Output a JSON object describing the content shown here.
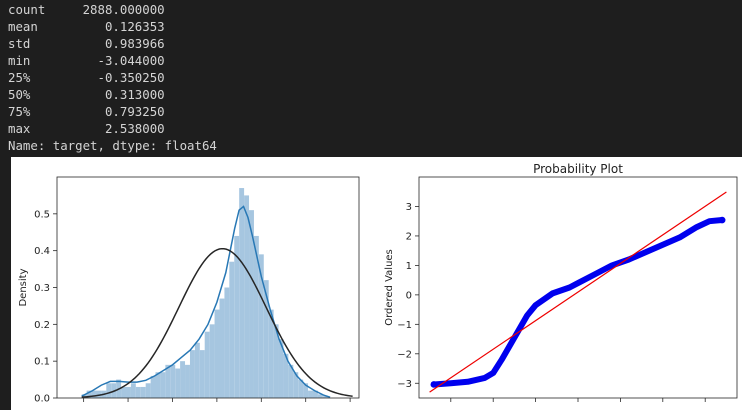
{
  "describe": {
    "rows": [
      {
        "key": "count",
        "value": "2888.000000"
      },
      {
        "key": "mean",
        "value": "0.126353"
      },
      {
        "key": "std",
        "value": "0.983966"
      },
      {
        "key": "min",
        "value": "-3.044000"
      },
      {
        "key": "25%",
        "value": "-0.350250"
      },
      {
        "key": "50%",
        "value": "0.313000"
      },
      {
        "key": "75%",
        "value": "0.793250"
      },
      {
        "key": "max",
        "value": "2.538000"
      }
    ],
    "footer": "Name: target, dtype: float64"
  },
  "colors": {
    "background": "#1e1e1e",
    "text": "#d4d4d4",
    "hist_fill": "#a6c6e0",
    "kde": "#2878b5",
    "normal_fit": "#262626",
    "qq_points": "#0000ee",
    "qq_line": "#ee0000"
  },
  "chart_data": [
    {
      "type": "bar",
      "title": "",
      "xlabel": "",
      "ylabel": "Density",
      "ylim": [
        0,
        0.6
      ],
      "xlim": [
        -3.6,
        3.2
      ],
      "yticks": [
        "0.0",
        "0.1",
        "0.2",
        "0.3",
        "0.4",
        "0.5"
      ],
      "hist_width": 0.1108,
      "hist_x": [
        -3.044,
        -2.933,
        -2.822,
        -2.711,
        -2.6,
        -2.49,
        -2.379,
        -2.268,
        -2.157,
        -2.046,
        -1.936,
        -1.825,
        -1.714,
        -1.603,
        -1.492,
        -1.382,
        -1.271,
        -1.16,
        -1.049,
        -0.938,
        -0.828,
        -0.717,
        -0.606,
        -0.495,
        -0.384,
        -0.274,
        -0.163,
        -0.052,
        0.059,
        0.17,
        0.28,
        0.391,
        0.502,
        0.613,
        0.724,
        0.834,
        0.945,
        1.056,
        1.167,
        1.278,
        1.388,
        1.499,
        1.61,
        1.721,
        1.832,
        1.942,
        2.053,
        2.164,
        2.275,
        2.386
      ],
      "hist_values": [
        0.01,
        0.02,
        0.02,
        0.02,
        0.02,
        0.04,
        0.04,
        0.05,
        0.03,
        0.03,
        0.04,
        0.03,
        0.03,
        0.04,
        0.06,
        0.07,
        0.07,
        0.09,
        0.09,
        0.08,
        0.1,
        0.09,
        0.13,
        0.15,
        0.13,
        0.18,
        0.2,
        0.24,
        0.27,
        0.3,
        0.37,
        0.44,
        0.57,
        0.55,
        0.51,
        0.44,
        0.39,
        0.32,
        0.24,
        0.2,
        0.16,
        0.12,
        0.09,
        0.07,
        0.05,
        0.04,
        0.02,
        0.02,
        0.01,
        0.005
      ],
      "series": [
        {
          "x": [
            -3.044,
            -2.8,
            -2.6,
            -2.4,
            -2.2,
            -2.0,
            -1.8,
            -1.6,
            -1.4,
            -1.2,
            -1.0,
            -0.8,
            -0.6,
            -0.4,
            -0.2,
            0.0,
            0.2,
            0.3,
            0.4,
            0.5,
            0.6,
            0.7,
            0.8,
            1.0,
            1.2,
            1.4,
            1.6,
            1.8,
            2.0,
            2.2,
            2.4,
            2.55
          ],
          "y": [
            0.005,
            0.02,
            0.035,
            0.045,
            0.045,
            0.043,
            0.043,
            0.048,
            0.06,
            0.075,
            0.09,
            0.11,
            0.13,
            0.16,
            0.2,
            0.26,
            0.34,
            0.4,
            0.46,
            0.51,
            0.52,
            0.49,
            0.44,
            0.33,
            0.24,
            0.16,
            0.1,
            0.06,
            0.035,
            0.02,
            0.008,
            0.002
          ]
        },
        {
          "mu": 0.126353,
          "sigma": 0.983966,
          "x_range": [
            -3.044,
            3.1
          ]
        }
      ]
    },
    {
      "type": "scatter",
      "title": "Probability Plot",
      "xlabel": "",
      "ylabel": "Ordered Values",
      "xlim": [
        -3.75,
        3.75
      ],
      "ylim": [
        -3.5,
        4.0
      ],
      "yticks": [
        "−3",
        "−2",
        "−1",
        "0",
        "1",
        "2",
        "3"
      ],
      "fit_line": {
        "x": [
          -3.5,
          3.5
        ],
        "y": [
          -3.3,
          3.49
        ]
      },
      "quantile_curve": {
        "x": [
          -3.4,
          -3.0,
          -2.6,
          -2.2,
          -2.0,
          -1.8,
          -1.6,
          -1.4,
          -1.2,
          -1.0,
          -0.6,
          -0.2,
          0.0,
          0.4,
          0.8,
          1.2,
          1.6,
          2.0,
          2.4,
          2.8,
          3.1,
          3.4
        ],
        "y": [
          -3.04,
          -3.0,
          -2.95,
          -2.82,
          -2.65,
          -2.2,
          -1.7,
          -1.2,
          -0.7,
          -0.35,
          0.05,
          0.25,
          0.4,
          0.7,
          1.0,
          1.2,
          1.45,
          1.7,
          1.95,
          2.3,
          2.5,
          2.54
        ]
      },
      "endpoints": [
        {
          "x": -3.4,
          "y": -3.04
        },
        {
          "x": 3.4,
          "y": 2.54
        }
      ]
    }
  ]
}
